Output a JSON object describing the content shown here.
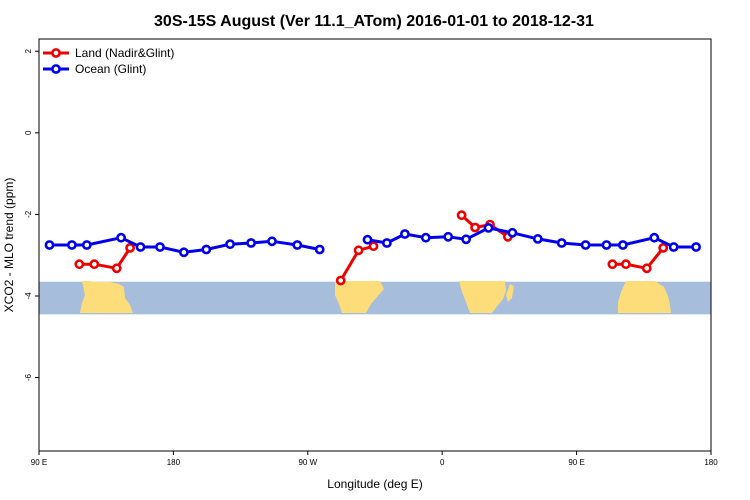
{
  "chart_data": {
    "type": "line",
    "title": "30S-15S August (Ver 11.1_ATom)   2016-01-01 to 2018-12-31",
    "xlabel": "Longitude (deg E)",
    "ylabel": "XCO2 - MLO trend (ppm)",
    "xlim": [
      90,
      540
    ],
    "ylim": [
      -7.8,
      2.3
    ],
    "x_ticks": [
      {
        "value": 90,
        "label": "90 E"
      },
      {
        "value": 180,
        "label": "180"
      },
      {
        "value": 270,
        "label": "90 W"
      },
      {
        "value": 360,
        "label": "0"
      },
      {
        "value": 450,
        "label": "90 E"
      },
      {
        "value": 540,
        "label": "180"
      }
    ],
    "y_ticks": [
      {
        "value": 2,
        "label": "2"
      },
      {
        "value": 0,
        "label": "0"
      },
      {
        "value": -2,
        "label": "-2"
      },
      {
        "value": -4,
        "label": "-4"
      },
      {
        "value": -6,
        "label": "-6"
      }
    ],
    "grid": false,
    "legend_position": "top-left",
    "map_band": {
      "ymin": -4.45,
      "ymax": -3.65,
      "ocean_color": "#a7bddc",
      "land_color": "#fddc7a"
    },
    "series": [
      {
        "name": "Land (Nadir&Glint)",
        "color": "#ee0000",
        "segments": [
          [
            [
              117,
              -3.22
            ],
            [
              127,
              -3.22
            ],
            [
              142,
              -3.32
            ],
            [
              151,
              -2.82
            ]
          ],
          [
            [
              292,
              -3.62
            ],
            [
              304,
              -2.88
            ],
            [
              314,
              -2.78
            ]
          ],
          [
            [
              373,
              -2.02
            ],
            [
              382,
              -2.32
            ],
            [
              392,
              -2.25
            ],
            [
              404,
              -2.55
            ]
          ],
          [
            [
              474,
              -3.22
            ],
            [
              483,
              -3.22
            ],
            [
              497,
              -3.32
            ],
            [
              508,
              -2.82
            ]
          ]
        ]
      },
      {
        "name": "Ocean (Glint)",
        "color": "#0000ee",
        "segments": [
          [
            [
              97,
              -2.75
            ],
            [
              112,
              -2.75
            ],
            [
              122,
              -2.75
            ],
            [
              145,
              -2.57
            ],
            [
              158,
              -2.8
            ],
            [
              171,
              -2.8
            ],
            [
              187,
              -2.93
            ],
            [
              202,
              -2.86
            ],
            [
              218,
              -2.73
            ],
            [
              232,
              -2.7
            ],
            [
              246,
              -2.66
            ],
            [
              263,
              -2.75
            ],
            [
              278,
              -2.86
            ]
          ],
          [
            [
              310,
              -2.62
            ],
            [
              323,
              -2.7
            ],
            [
              335,
              -2.48
            ],
            [
              349,
              -2.57
            ],
            [
              364,
              -2.55
            ],
            [
              376,
              -2.61
            ],
            [
              391,
              -2.33
            ],
            [
              407,
              -2.45
            ],
            [
              424,
              -2.6
            ],
            [
              440,
              -2.7
            ],
            [
              456,
              -2.75
            ],
            [
              470,
              -2.75
            ],
            [
              481,
              -2.75
            ],
            [
              502,
              -2.57
            ],
            [
              515,
              -2.8
            ],
            [
              530,
              -2.8
            ]
          ]
        ]
      }
    ]
  }
}
